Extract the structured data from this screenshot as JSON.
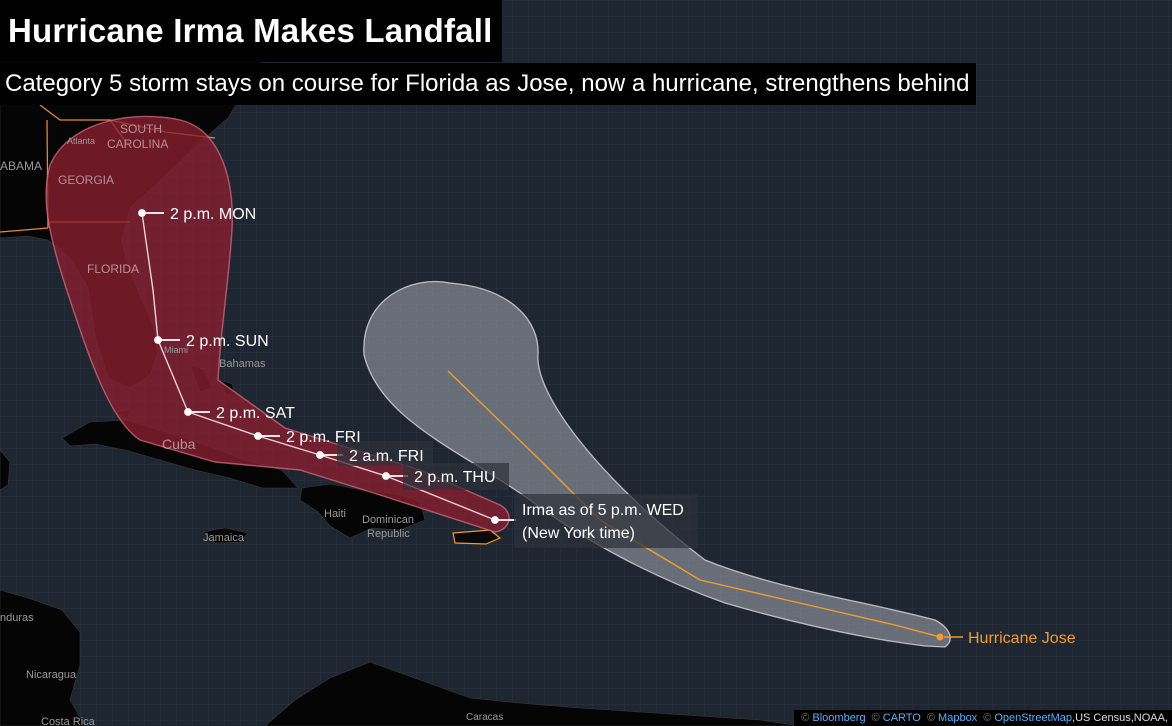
{
  "header": {
    "title": "Hurricane Irma Makes Landfall",
    "subtitle": "Category 5 storm stays on course for Florida as Jose, now a hurricane, strengthens behind"
  },
  "colors": {
    "ocean": "#1e2631",
    "land": "#050505",
    "state_borders": "#e68a2e",
    "irma_cone": "#8a1f30",
    "irma_track": "#f0d0d6",
    "jose_cone": "#a0a4aa",
    "jose_track": "#f29c2b",
    "label_text": "#ffffff"
  },
  "place_labels": {
    "south_carolina_1": "SOUTH",
    "south_carolina_2": "CAROLINA",
    "atlanta": "Atlanta",
    "alabama": "ABAMA",
    "georgia": "GEORGIA",
    "florida": "FLORIDA",
    "miami": "Miami",
    "bahamas": "Bahamas",
    "cuba": "Cuba",
    "haiti": "Haiti",
    "dominican_1": "Dominican",
    "dominican_2": "Republic",
    "jamaica": "Jamaica",
    "honduras": "nduras",
    "nicaragua": "Nicaragua",
    "costa_rica": "Costa Rica",
    "caracas": "Caracas"
  },
  "irma": {
    "forecast_points": [
      {
        "label": "2 p.m. MON"
      },
      {
        "label": "2 p.m. SUN"
      },
      {
        "label": "2 p.m. SAT"
      },
      {
        "label": "2 p.m. FRI"
      },
      {
        "label": "2 a.m. FRI"
      },
      {
        "label": "2 p.m. THU"
      }
    ],
    "current_line1": "Irma as of 5 p.m. WED",
    "current_line2": "(New York time)"
  },
  "jose": {
    "label": "Hurricane Jose"
  },
  "attribution": {
    "items": [
      "Bloomberg",
      "CARTO",
      "Mapbox",
      "OpenStreetMap"
    ],
    "suffix": ",US Census,NOAA,"
  }
}
